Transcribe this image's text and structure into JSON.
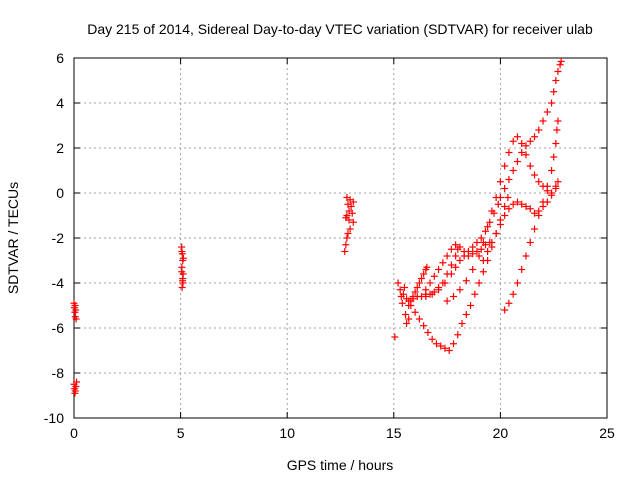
{
  "chart_data": {
    "type": "scatter",
    "title": "Day 215 of 2014, Sidereal Day-to-day VTEC variation (SDTVAR) for receiver ulab",
    "xlabel": "GPS time / hours",
    "ylabel": "SDTVAR / TECUs",
    "xlim": [
      0,
      25
    ],
    "ylim": [
      -10,
      6
    ],
    "xticks": [
      0,
      5,
      10,
      15,
      20,
      25
    ],
    "yticks": [
      -10,
      -8,
      -6,
      -4,
      -2,
      0,
      2,
      4,
      6
    ],
    "grid": true,
    "legend": "none",
    "marker": "+",
    "color": "#ff0000",
    "series": [
      {
        "values_description": "",
        "points": [
          [
            0.0,
            -4.9
          ],
          [
            0.02,
            -5.1
          ],
          [
            0.04,
            -5.3
          ],
          [
            0.06,
            -5.5
          ],
          [
            0.08,
            -5.2
          ],
          [
            0.1,
            -5.6
          ],
          [
            0.05,
            -5.0
          ],
          [
            0.0,
            -8.5
          ],
          [
            0.03,
            -8.7
          ],
          [
            0.06,
            -8.8
          ],
          [
            0.09,
            -8.6
          ],
          [
            0.12,
            -8.4
          ],
          [
            0.04,
            -8.9
          ],
          [
            5.05,
            -2.4
          ],
          [
            5.08,
            -2.7
          ],
          [
            5.1,
            -3.0
          ],
          [
            5.06,
            -3.3
          ],
          [
            5.12,
            -3.6
          ],
          [
            5.09,
            -3.9
          ],
          [
            5.07,
            -4.2
          ],
          [
            5.11,
            -4.0
          ],
          [
            5.05,
            -3.5
          ],
          [
            5.13,
            -2.9
          ],
          [
            5.1,
            -3.8
          ],
          [
            5.06,
            -2.6
          ],
          [
            12.8,
            -0.2
          ],
          [
            12.85,
            -0.5
          ],
          [
            12.9,
            -0.8
          ],
          [
            12.75,
            -1.1
          ],
          [
            12.95,
            -0.3
          ],
          [
            13.0,
            -0.6
          ],
          [
            13.05,
            -0.9
          ],
          [
            13.1,
            -1.3
          ],
          [
            12.9,
            -1.2
          ],
          [
            12.8,
            -1.0
          ],
          [
            13.1,
            -0.4
          ],
          [
            12.7,
            -2.6
          ],
          [
            12.75,
            -2.3
          ],
          [
            12.8,
            -2.0
          ],
          [
            12.85,
            -1.8
          ],
          [
            12.95,
            -1.6
          ],
          [
            15.05,
            -6.4
          ],
          [
            15.2,
            -4.0
          ],
          [
            15.3,
            -4.3
          ],
          [
            15.35,
            -4.6
          ],
          [
            15.4,
            -4.9
          ],
          [
            15.45,
            -4.5
          ],
          [
            15.5,
            -4.2
          ],
          [
            15.6,
            -4.7
          ],
          [
            15.7,
            -5.0
          ],
          [
            15.55,
            -5.4
          ],
          [
            15.6,
            -5.8
          ],
          [
            15.7,
            -5.6
          ],
          [
            15.8,
            -4.8
          ],
          [
            15.9,
            -4.6
          ],
          [
            16.0,
            -4.4
          ],
          [
            16.1,
            -4.2
          ],
          [
            16.2,
            -4.0
          ],
          [
            16.3,
            -3.8
          ],
          [
            16.4,
            -3.6
          ],
          [
            16.5,
            -3.4
          ],
          [
            16.55,
            -3.3
          ],
          [
            15.7,
            -4.8
          ],
          [
            15.9,
            -4.7
          ],
          [
            16.1,
            -4.6
          ],
          [
            16.3,
            -4.6
          ],
          [
            16.5,
            -4.5
          ],
          [
            16.7,
            -4.5
          ],
          [
            16.9,
            -4.4
          ],
          [
            17.1,
            -4.2
          ],
          [
            17.3,
            -4.0
          ],
          [
            17.5,
            -3.6
          ],
          [
            17.7,
            -3.2
          ],
          [
            17.9,
            -2.8
          ],
          [
            18.0,
            -2.5
          ],
          [
            16.5,
            -4.3
          ],
          [
            16.7,
            -4.0
          ],
          [
            16.9,
            -3.7
          ],
          [
            17.1,
            -3.4
          ],
          [
            17.3,
            -3.1
          ],
          [
            17.5,
            -2.8
          ],
          [
            17.7,
            -2.5
          ],
          [
            17.9,
            -2.3
          ],
          [
            18.1,
            -2.4
          ],
          [
            18.3,
            -2.6
          ],
          [
            18.5,
            -2.8
          ],
          [
            18.7,
            -2.7
          ],
          [
            18.9,
            -2.6
          ],
          [
            19.1,
            -2.5
          ],
          [
            19.3,
            -2.3
          ],
          [
            19.5,
            -2.2
          ],
          [
            15.8,
            -5.0
          ],
          [
            16.0,
            -5.3
          ],
          [
            16.2,
            -5.6
          ],
          [
            16.4,
            -5.9
          ],
          [
            16.6,
            -6.2
          ],
          [
            16.8,
            -6.5
          ],
          [
            17.0,
            -6.7
          ],
          [
            17.2,
            -6.8
          ],
          [
            17.4,
            -6.9
          ],
          [
            17.6,
            -7.0
          ],
          [
            17.8,
            -6.7
          ],
          [
            18.0,
            -6.3
          ],
          [
            18.2,
            -5.8
          ],
          [
            18.4,
            -5.4
          ],
          [
            18.6,
            -5.0
          ],
          [
            18.8,
            -4.5
          ],
          [
            19.0,
            -4.0
          ],
          [
            19.2,
            -3.5
          ],
          [
            19.4,
            -3.0
          ],
          [
            19.6,
            -2.4
          ],
          [
            19.8,
            -1.8
          ],
          [
            20.0,
            -1.2
          ],
          [
            20.2,
            -0.6
          ],
          [
            20.35,
            -0.2
          ],
          [
            16.5,
            -4.6
          ],
          [
            16.8,
            -4.5
          ],
          [
            17.1,
            -4.3
          ],
          [
            17.4,
            -4.0
          ],
          [
            17.7,
            -3.6
          ],
          [
            17.9,
            -3.3
          ],
          [
            18.1,
            -3.0
          ],
          [
            18.3,
            -2.8
          ],
          [
            18.5,
            -2.6
          ],
          [
            18.7,
            -2.4
          ],
          [
            18.9,
            -2.2
          ],
          [
            19.1,
            -2.0
          ],
          [
            19.3,
            -1.7
          ],
          [
            19.5,
            -1.3
          ],
          [
            19.7,
            -0.9
          ],
          [
            19.9,
            -0.5
          ],
          [
            20.0,
            -0.2
          ],
          [
            20.2,
            0.2
          ],
          [
            20.4,
            0.6
          ],
          [
            20.6,
            1.0
          ],
          [
            20.8,
            1.4
          ],
          [
            21.0,
            1.8
          ],
          [
            21.2,
            2.1
          ],
          [
            21.4,
            2.3
          ],
          [
            21.6,
            2.5
          ],
          [
            21.8,
            2.8
          ],
          [
            22.0,
            3.2
          ],
          [
            22.2,
            3.6
          ],
          [
            22.4,
            4.0
          ],
          [
            22.5,
            4.5
          ],
          [
            22.6,
            5.0
          ],
          [
            22.7,
            5.4
          ],
          [
            22.8,
            5.7
          ],
          [
            22.85,
            5.85
          ],
          [
            17.5,
            -4.8
          ],
          [
            17.8,
            -4.6
          ],
          [
            18.1,
            -4.3
          ],
          [
            18.4,
            -3.9
          ],
          [
            18.7,
            -3.4
          ],
          [
            19.0,
            -2.8
          ],
          [
            19.2,
            -2.2
          ],
          [
            19.4,
            -1.5
          ],
          [
            19.6,
            -0.8
          ],
          [
            19.8,
            -0.2
          ],
          [
            20.0,
            0.5
          ],
          [
            20.2,
            1.2
          ],
          [
            20.4,
            1.8
          ],
          [
            20.6,
            2.3
          ],
          [
            20.8,
            2.5
          ],
          [
            21.0,
            2.2
          ],
          [
            21.2,
            1.7
          ],
          [
            21.4,
            1.2
          ],
          [
            21.6,
            0.8
          ],
          [
            21.8,
            0.5
          ],
          [
            22.0,
            0.3
          ],
          [
            22.2,
            0.1
          ],
          [
            22.4,
            0.0
          ],
          [
            22.6,
            0.2
          ],
          [
            22.7,
            0.5
          ],
          [
            19.2,
            -3.0
          ],
          [
            19.4,
            -2.6
          ],
          [
            19.6,
            -2.2
          ],
          [
            19.8,
            -1.8
          ],
          [
            20.0,
            -1.4
          ],
          [
            20.2,
            -1.0
          ],
          [
            20.4,
            -0.7
          ],
          [
            20.6,
            -0.5
          ],
          [
            20.8,
            -0.4
          ],
          [
            21.0,
            -0.5
          ],
          [
            21.2,
            -0.6
          ],
          [
            21.4,
            -0.7
          ],
          [
            21.6,
            -0.9
          ],
          [
            21.8,
            -0.8
          ],
          [
            22.0,
            -0.6
          ],
          [
            22.2,
            -0.4
          ],
          [
            22.4,
            -0.1
          ],
          [
            22.6,
            0.3
          ],
          [
            20.2,
            -5.2
          ],
          [
            20.4,
            -4.9
          ],
          [
            20.6,
            -4.5
          ],
          [
            20.8,
            -4.0
          ],
          [
            21.0,
            -3.4
          ],
          [
            21.2,
            -2.8
          ],
          [
            21.4,
            -2.2
          ],
          [
            21.6,
            -1.6
          ],
          [
            21.8,
            -1.0
          ],
          [
            22.0,
            -0.4
          ],
          [
            22.2,
            0.3
          ],
          [
            22.4,
            1.0
          ],
          [
            22.5,
            1.6
          ],
          [
            22.6,
            2.2
          ],
          [
            22.65,
            2.8
          ],
          [
            22.7,
            3.2
          ]
        ]
      }
    ]
  }
}
